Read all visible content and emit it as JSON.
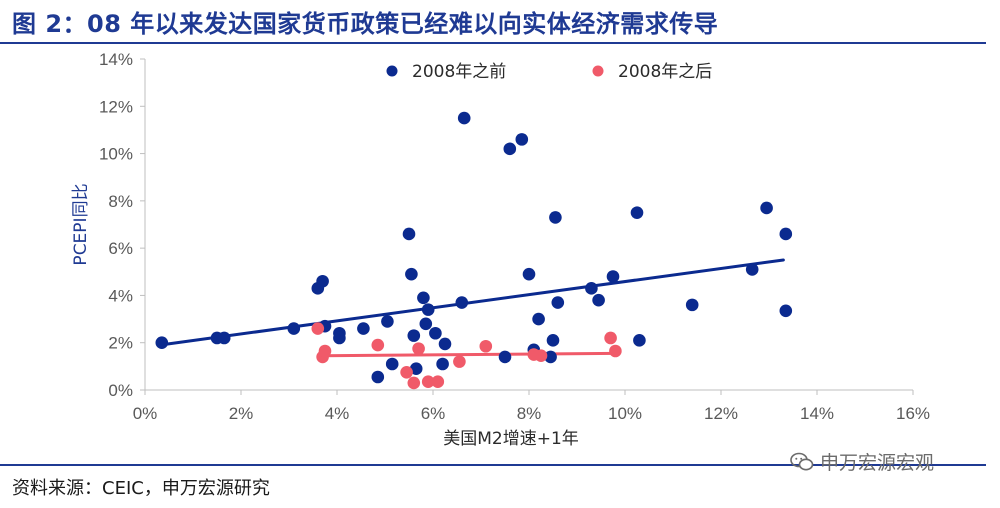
{
  "header": {
    "title": "图 2：08 年以来发达国家货币政策已经难以向实体经济需求传导"
  },
  "footer": {
    "source": "资料来源：CEIC，申万宏源研究",
    "watermark": "申万宏源宏观",
    "watermark_icon": "wechat-icon"
  },
  "colors": {
    "accent": "#1f3a93",
    "series_before": "#0b2a8f",
    "series_after": "#f05a69",
    "axis": "#bfbfbf",
    "text": "#595959"
  },
  "chart_data": {
    "type": "scatter",
    "title": "",
    "xlabel": "美国M2增速+1年",
    "ylabel": "PCEPI同比",
    "xlim": [
      0,
      16
    ],
    "ylim": [
      0,
      14
    ],
    "xticks": [
      0,
      2,
      4,
      6,
      8,
      10,
      12,
      14,
      16
    ],
    "yticks": [
      0,
      2,
      4,
      6,
      8,
      10,
      12,
      14
    ],
    "xtick_labels": [
      "0%",
      "2%",
      "4%",
      "6%",
      "8%",
      "10%",
      "12%",
      "14%",
      "16%"
    ],
    "ytick_labels": [
      "0%",
      "2%",
      "4%",
      "6%",
      "8%",
      "10%",
      "12%",
      "14%"
    ],
    "legend_position": "top",
    "grid": false,
    "series": [
      {
        "name": "2008年之前",
        "color": "#0b2a8f",
        "trend": [
          [
            0.3,
            1.9
          ],
          [
            13.3,
            5.5
          ]
        ],
        "points": [
          [
            0.35,
            2.0
          ],
          [
            1.5,
            2.2
          ],
          [
            1.65,
            2.2
          ],
          [
            3.1,
            2.6
          ],
          [
            3.6,
            4.3
          ],
          [
            3.7,
            4.6
          ],
          [
            3.75,
            2.7
          ],
          [
            4.05,
            2.4
          ],
          [
            4.05,
            2.2
          ],
          [
            4.55,
            2.6
          ],
          [
            4.85,
            0.55
          ],
          [
            5.05,
            2.9
          ],
          [
            5.15,
            1.1
          ],
          [
            5.5,
            6.6
          ],
          [
            5.55,
            4.9
          ],
          [
            5.6,
            2.3
          ],
          [
            5.65,
            0.9
          ],
          [
            5.8,
            3.9
          ],
          [
            5.85,
            2.8
          ],
          [
            5.9,
            3.4
          ],
          [
            6.05,
            2.4
          ],
          [
            6.2,
            1.1
          ],
          [
            6.25,
            1.95
          ],
          [
            6.6,
            3.7
          ],
          [
            6.65,
            11.5
          ],
          [
            7.5,
            1.4
          ],
          [
            7.6,
            10.2
          ],
          [
            7.85,
            10.6
          ],
          [
            8.0,
            4.9
          ],
          [
            8.1,
            1.7
          ],
          [
            8.2,
            3.0
          ],
          [
            8.45,
            1.4
          ],
          [
            8.5,
            2.1
          ],
          [
            8.55,
            7.3
          ],
          [
            8.6,
            3.7
          ],
          [
            9.3,
            4.3
          ],
          [
            9.45,
            3.8
          ],
          [
            9.75,
            4.8
          ],
          [
            10.25,
            7.5
          ],
          [
            10.3,
            2.1
          ],
          [
            11.4,
            3.6
          ],
          [
            12.65,
            5.1
          ],
          [
            12.95,
            7.7
          ],
          [
            13.35,
            6.6
          ],
          [
            13.35,
            3.35
          ]
        ]
      },
      {
        "name": "2008年之后",
        "color": "#f05a69",
        "trend": [
          [
            3.7,
            1.45
          ],
          [
            9.8,
            1.55
          ]
        ],
        "points": [
          [
            3.6,
            2.6
          ],
          [
            3.7,
            1.4
          ],
          [
            3.75,
            1.65
          ],
          [
            4.85,
            1.9
          ],
          [
            5.45,
            0.75
          ],
          [
            5.6,
            0.3
          ],
          [
            5.7,
            1.75
          ],
          [
            5.9,
            0.35
          ],
          [
            6.1,
            0.35
          ],
          [
            6.55,
            1.2
          ],
          [
            7.1,
            1.85
          ],
          [
            8.1,
            1.5
          ],
          [
            8.25,
            1.45
          ],
          [
            9.7,
            2.2
          ],
          [
            9.8,
            1.65
          ]
        ]
      }
    ]
  }
}
